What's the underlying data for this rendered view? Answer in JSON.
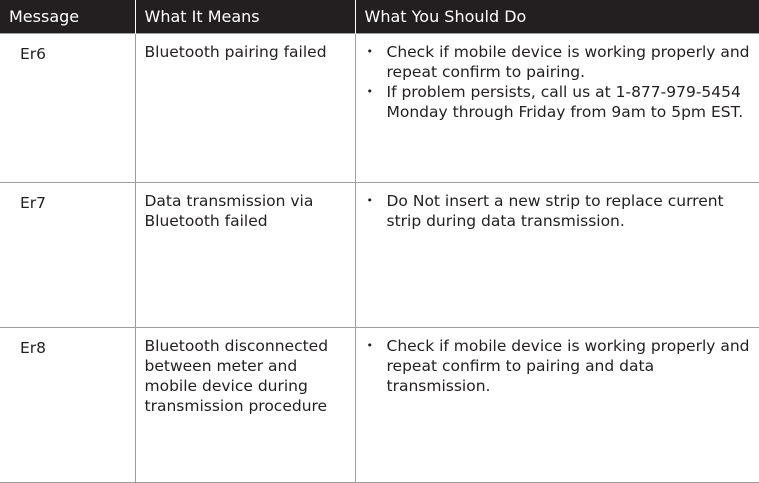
{
  "table": {
    "headers": [
      "Message",
      "What It Means",
      "What You Should Do"
    ],
    "rows": [
      {
        "display": "Er6",
        "meaning": "Bluetooth pairing failed",
        "actions": [
          "Check if mobile device is working properly and repeat confirm to pairing.",
          "If problem persists, call us at 1-877-979-5454 Monday through Friday from 9am to 5pm EST."
        ]
      },
      {
        "display": "Er7",
        "meaning": "Data transmission via Bluetooth failed",
        "actions": [
          "Do Not insert a new strip to replace current strip during data transmission."
        ]
      },
      {
        "display": "Er8",
        "meaning": "Bluetooth disconnected between meter and mobile device during transmission procedure",
        "actions": [
          "Check if mobile device is working properly and repeat confirm to pairing and data transmission."
        ]
      }
    ]
  }
}
